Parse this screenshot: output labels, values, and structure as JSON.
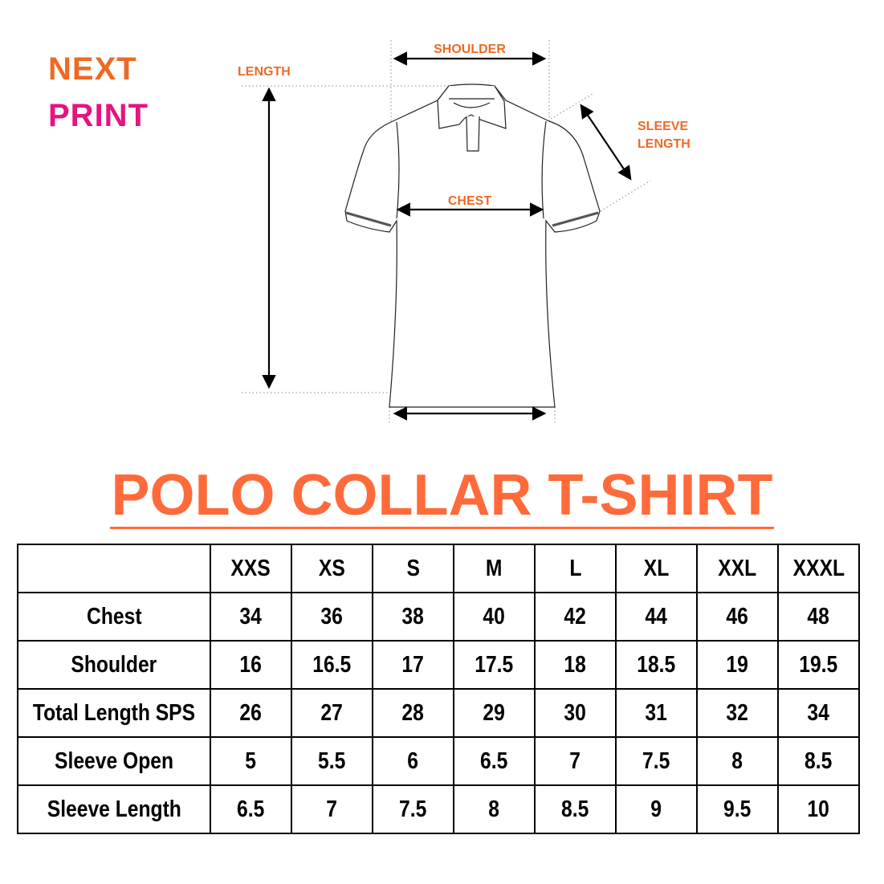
{
  "logo": {
    "line1": "NEXT",
    "line2": "PRINT",
    "colors": {
      "orange": "#ee6a24",
      "pink": "#e5147f"
    }
  },
  "diagram": {
    "labels": {
      "length": "LENGTH",
      "shoulder": "SHOULDER",
      "chest": "CHEST",
      "sleeve_length_1": "SLEEVE",
      "sleeve_length_2": "LENGTH"
    },
    "label_color": "#ee6a24"
  },
  "title": "POLO COLLAR T-SHIRT",
  "title_color": "#ff6a3a",
  "table": {
    "sizes": [
      "XXS",
      "XS",
      "S",
      "M",
      "L",
      "XL",
      "XXL",
      "XXXL"
    ],
    "rows": [
      {
        "label": "Chest",
        "values": [
          "34",
          "36",
          "38",
          "40",
          "42",
          "44",
          "46",
          "48"
        ]
      },
      {
        "label": "Shoulder",
        "values": [
          "16",
          "16.5",
          "17",
          "17.5",
          "18",
          "18.5",
          "19",
          "19.5"
        ]
      },
      {
        "label": "Total Length SPS",
        "values": [
          "26",
          "27",
          "28",
          "29",
          "30",
          "31",
          "32",
          "34"
        ]
      },
      {
        "label": "Sleeve Open",
        "values": [
          "5",
          "5.5",
          "6",
          "6.5",
          "7",
          "7.5",
          "8",
          "8.5"
        ]
      },
      {
        "label": "Sleeve Length",
        "values": [
          "6.5",
          "7",
          "7.5",
          "8",
          "8.5",
          "9",
          "9.5",
          "10"
        ]
      }
    ]
  }
}
